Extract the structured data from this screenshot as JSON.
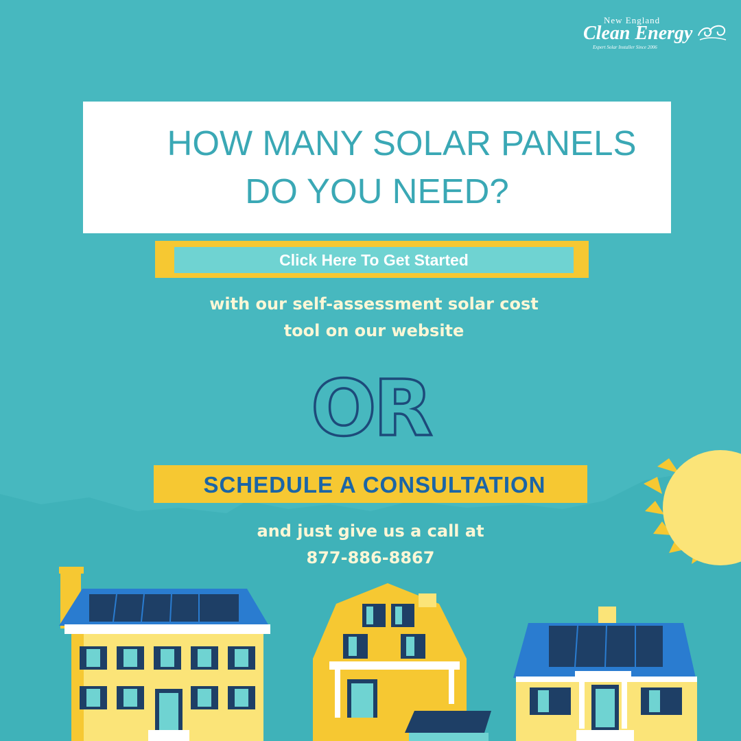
{
  "logo": {
    "line1": "New England",
    "line2": "Clean Energy",
    "tagline": "Expert Solar Installer Since 2006",
    "icon": "wave-swirl-icon"
  },
  "headline": {
    "line1": "HOW MANY SOLAR PANELS",
    "line2": "DO YOU NEED?"
  },
  "cta": {
    "label": "Click Here To Get Started"
  },
  "assessment_text": {
    "line1": "with our self-assessment solar cost",
    "line2": "tool on our website"
  },
  "or_text": "OR",
  "schedule": {
    "label": "SCHEDULE A CONSULTATION"
  },
  "call_text": {
    "line1": "and just give us a call at",
    "phone": "877-886-8867"
  },
  "colors": {
    "background": "#47b8bf",
    "accent_yellow": "#f6c832",
    "headline_teal": "#3aa8b5",
    "schedule_blue": "#1b65a6",
    "or_outline": "#1d4a7a",
    "sun": "#fbe478"
  }
}
